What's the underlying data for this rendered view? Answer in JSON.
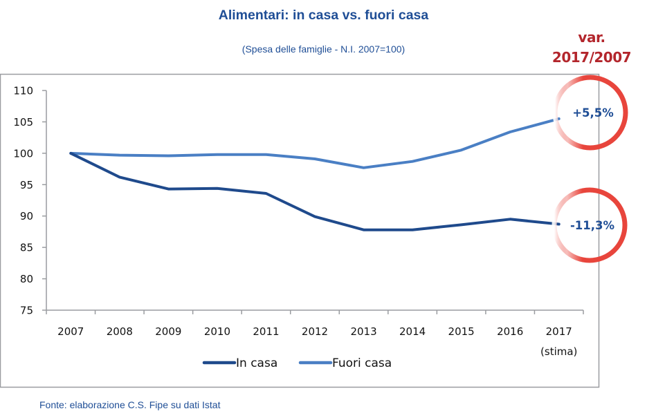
{
  "chart_data": {
    "type": "line",
    "title": "Alimentari: in casa vs. fuori casa",
    "subtitle": "(Spesa delle famiglie - N.I. 2007=100)",
    "categories": [
      "2007",
      "2008",
      "2009",
      "2010",
      "2011",
      "2012",
      "2013",
      "2014",
      "2015",
      "2016",
      "2017"
    ],
    "last_category_note": "(stima)",
    "xlabel": "",
    "ylabel": "",
    "ylim": [
      75,
      110
    ],
    "yticks": [
      110,
      105,
      100,
      95,
      90,
      85,
      80,
      75
    ],
    "grid": false,
    "legend_position": "bottom",
    "series": [
      {
        "name": "In casa",
        "color": "#1f4a8c",
        "values": [
          100,
          96.2,
          94.3,
          94.4,
          93.6,
          89.9,
          87.8,
          87.8,
          88.6,
          89.5,
          88.7
        ]
      },
      {
        "name": "Fuori casa",
        "color": "#4a7fc4",
        "values": [
          100,
          99.7,
          99.6,
          99.8,
          99.8,
          99.1,
          97.7,
          98.7,
          100.5,
          103.4,
          105.5
        ]
      }
    ],
    "annotations": {
      "header": [
        "var.",
        "2017/2007"
      ],
      "items": [
        {
          "series": "Fuori casa",
          "text": "+5,5%"
        },
        {
          "series": "In casa",
          "text": "-11,3%"
        }
      ],
      "ring_color": "#e8453c"
    },
    "source": "Fonte: elaborazione C.S. Fipe su dati Istat"
  }
}
